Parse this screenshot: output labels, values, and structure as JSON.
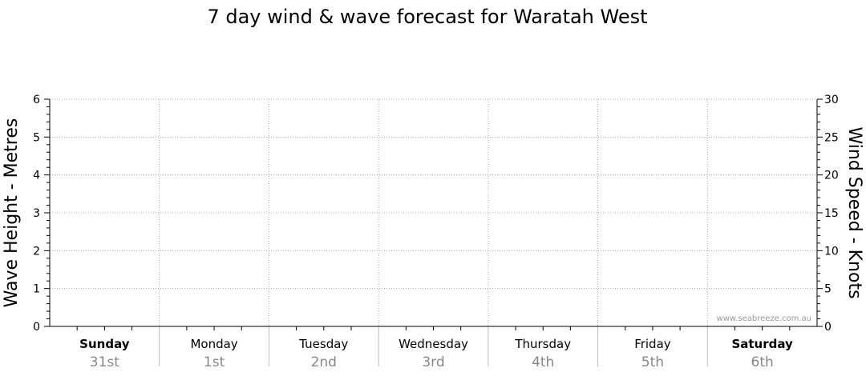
{
  "chart_data": {
    "type": "line",
    "title": "7 day wind & wave forecast for Waratah West",
    "y_left": {
      "label": "Wave Height - Metres",
      "ylim": [
        0,
        6
      ],
      "ticks": [
        0,
        1,
        2,
        3,
        4,
        5,
        6
      ]
    },
    "y_right": {
      "label": "Wind Speed - Knots",
      "ylim": [
        0,
        30
      ],
      "ticks": [
        0,
        5,
        10,
        15,
        20,
        25,
        30
      ]
    },
    "days": [
      {
        "name": "Sunday",
        "date": "31st",
        "bold": true
      },
      {
        "name": "Monday",
        "date": "1st",
        "bold": false
      },
      {
        "name": "Tuesday",
        "date": "2nd",
        "bold": false
      },
      {
        "name": "Wednesday",
        "date": "3rd",
        "bold": false
      },
      {
        "name": "Thursday",
        "date": "4th",
        "bold": false
      },
      {
        "name": "Friday",
        "date": "5th",
        "bold": false
      },
      {
        "name": "Saturday",
        "date": "6th",
        "bold": true
      }
    ],
    "series": [],
    "grid": true,
    "watermark": "www.seabreeze.com.au"
  }
}
